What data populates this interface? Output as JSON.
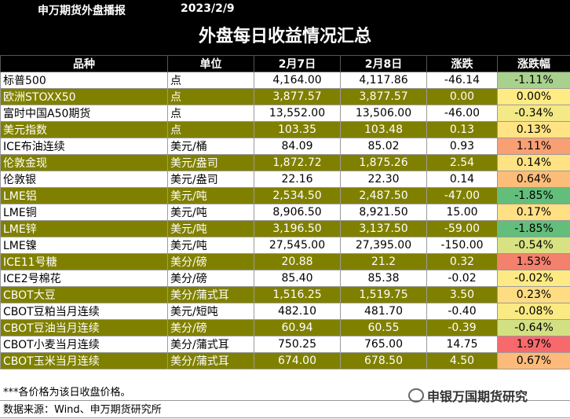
{
  "header": {
    "brand": "申万期货外盘播报",
    "date": "2023/2/9"
  },
  "title": "外盘每日收益情况汇总",
  "columns": [
    "品种",
    "单位",
    "2月7日",
    "2月8日",
    "涨跌",
    "涨跌幅"
  ],
  "rows": [
    {
      "name": "标普500",
      "unit": "点",
      "d1": "4,164.00",
      "d2": "4,117.86",
      "chg": "-46.14",
      "pct": "-1.11%",
      "pct_color": "#a9d18e"
    },
    {
      "name": "欧洲STOXX50",
      "unit": "点",
      "d1": "3,877.57",
      "d2": "3,877.57",
      "chg": "0.00",
      "pct": "0.00%",
      "pct_color": "#ffeb84"
    },
    {
      "name": "富时中国A50期货",
      "unit": "点",
      "d1": "13,552.00",
      "d2": "13,506.00",
      "chg": "-46.00",
      "pct": "-0.34%",
      "pct_color": "#f4e987"
    },
    {
      "name": "美元指数",
      "unit": "点",
      "d1": "103.35",
      "d2": "103.48",
      "chg": "0.13",
      "pct": "0.13%",
      "pct_color": "#ffe384"
    },
    {
      "name": "ICE布油连续",
      "unit": "美元/桶",
      "d1": "84.09",
      "d2": "85.02",
      "chg": "0.93",
      "pct": "1.11%",
      "pct_color": "#f8a073"
    },
    {
      "name": "伦敦金现",
      "unit": "美元/盎司",
      "d1": "1,872.72",
      "d2": "1,875.26",
      "chg": "2.54",
      "pct": "0.14%",
      "pct_color": "#ffe283"
    },
    {
      "name": "伦敦银",
      "unit": "美元/盎司",
      "d1": "22.16",
      "d2": "22.30",
      "chg": "0.14",
      "pct": "0.64%",
      "pct_color": "#fcbd7b"
    },
    {
      "name": "LME铝",
      "unit": "美元/吨",
      "d1": "2,534.50",
      "d2": "2,487.50",
      "chg": "-47.00",
      "pct": "-1.85%",
      "pct_color": "#63be7b"
    },
    {
      "name": "LME铜",
      "unit": "美元/吨",
      "d1": "8,906.50",
      "d2": "8,921.50",
      "chg": "15.00",
      "pct": "0.17%",
      "pct_color": "#ffe083"
    },
    {
      "name": "LME锌",
      "unit": "美元/吨",
      "d1": "3,196.50",
      "d2": "3,137.50",
      "chg": "-59.00",
      "pct": "-1.85%",
      "pct_color": "#63be7b"
    },
    {
      "name": "LME镍",
      "unit": "美元/吨",
      "d1": "27,545.00",
      "d2": "27,395.00",
      "chg": "-150.00",
      "pct": "-0.54%",
      "pct_color": "#d9e283"
    },
    {
      "name": "ICE11号糖",
      "unit": "美分/磅",
      "d1": "20.88",
      "d2": "21.2",
      "chg": "0.32",
      "pct": "1.53%",
      "pct_color": "#f4806e"
    },
    {
      "name": "ICE2号棉花",
      "unit": "美分/磅",
      "d1": "85.40",
      "d2": "85.38",
      "chg": "-0.02",
      "pct": "-0.02%",
      "pct_color": "#fdea84"
    },
    {
      "name": "CBOT大豆",
      "unit": "美分/蒲式耳",
      "d1": "1,516.25",
      "d2": "1,519.75",
      "chg": "3.50",
      "pct": "0.23%",
      "pct_color": "#fedc82"
    },
    {
      "name": "CBOT豆粕当月连续",
      "unit": "美元/短吨",
      "d1": "482.10",
      "d2": "481.70",
      "chg": "-0.40",
      "pct": "-0.08%",
      "pct_color": "#f9ea84"
    },
    {
      "name": "CBOT豆油当月连续",
      "unit": "美分/磅",
      "d1": "60.94",
      "d2": "60.55",
      "chg": "-0.39",
      "pct": "-0.64%",
      "pct_color": "#d3e082"
    },
    {
      "name": "CBOT小麦当月连续",
      "unit": "美分/蒲式耳",
      "d1": "750.25",
      "d2": "765.00",
      "chg": "14.75",
      "pct": "1.97%",
      "pct_color": "#f8696b"
    },
    {
      "name": "CBOT玉米当月连续",
      "unit": "美分/蒲式耳",
      "d1": "674.00",
      "d2": "678.50",
      "chg": "4.50",
      "pct": "0.67%",
      "pct_color": "#fcbb7b"
    }
  ],
  "footnote": "***各价格为该日收盘价格。",
  "source": "数据来源：Wind、申万期货研究所",
  "watermark": "申银万国期货研究"
}
